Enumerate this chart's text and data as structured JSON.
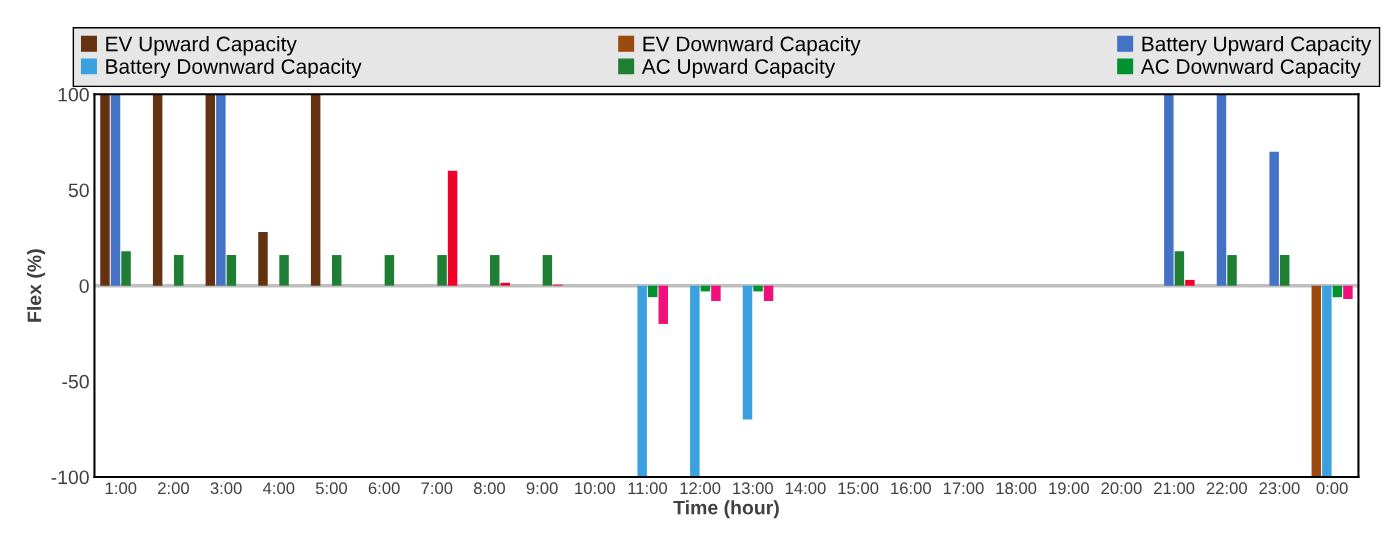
{
  "chart_data": {
    "type": "bar",
    "xlabel": "Time (hour)",
    "ylabel": "Flex (%)",
    "categories": [
      "1:00",
      "2:00",
      "3:00",
      "4:00",
      "5:00",
      "6:00",
      "7:00",
      "8:00",
      "9:00",
      "10:00",
      "11:00",
      "12:00",
      "13:00",
      "14:00",
      "15:00",
      "16:00",
      "17:00",
      "18:00",
      "19:00",
      "20:00",
      "21:00",
      "22:00",
      "23:00",
      "0:00"
    ],
    "series": [
      {
        "name": "EV Upward Capacity",
        "color": "#633210",
        "values": [
          100,
          100,
          100,
          28,
          100,
          null,
          null,
          null,
          null,
          null,
          null,
          null,
          null,
          null,
          null,
          null,
          null,
          null,
          null,
          null,
          null,
          null,
          null,
          null
        ]
      },
      {
        "name": "EV Downward Capacity",
        "color": "#9a4a0f",
        "values": [
          null,
          null,
          null,
          null,
          null,
          null,
          null,
          null,
          null,
          null,
          null,
          null,
          null,
          null,
          null,
          null,
          null,
          null,
          null,
          null,
          null,
          null,
          null,
          -100
        ]
      },
      {
        "name": "Battery Upward Capacity",
        "color": "#4472c4",
        "values": [
          100,
          null,
          100,
          null,
          null,
          null,
          null,
          null,
          null,
          null,
          null,
          null,
          null,
          null,
          null,
          null,
          null,
          null,
          null,
          null,
          100,
          100,
          70,
          null
        ]
      },
      {
        "name": "Battery Downward Capacity",
        "color": "#3aa0de",
        "values": [
          null,
          null,
          null,
          null,
          null,
          null,
          null,
          null,
          null,
          null,
          -100,
          -100,
          -70,
          null,
          null,
          null,
          null,
          null,
          null,
          null,
          null,
          null,
          null,
          -100
        ]
      },
      {
        "name": "AC Upward Capacity",
        "color": "#1e7e34",
        "values": [
          18,
          16,
          16,
          16,
          16,
          16,
          16,
          16,
          16,
          null,
          null,
          null,
          null,
          null,
          null,
          null,
          null,
          null,
          null,
          null,
          18,
          16,
          16,
          null
        ]
      },
      {
        "name": "AC Downward Capacity",
        "color": "#00922e",
        "values": [
          null,
          null,
          null,
          null,
          null,
          null,
          null,
          null,
          null,
          null,
          -6,
          -3,
          -3,
          null,
          null,
          null,
          null,
          null,
          null,
          null,
          null,
          null,
          null,
          -6
        ]
      },
      {
        "color": "#f0002a",
        "values": [
          null,
          null,
          null,
          null,
          null,
          null,
          60,
          1.5,
          0.5,
          null,
          null,
          null,
          null,
          null,
          null,
          null,
          null,
          null,
          null,
          null,
          3,
          null,
          null,
          null
        ]
      },
      {
        "color": "#f0107a",
        "values": [
          null,
          null,
          null,
          null,
          null,
          null,
          null,
          null,
          null,
          null,
          -20,
          -8,
          -8,
          null,
          null,
          null,
          null,
          null,
          null,
          null,
          null,
          null,
          null,
          -7
        ]
      }
    ],
    "ref_lines": [
      {
        "axis": "y",
        "value": 0,
        "color": "#bfbfbf"
      }
    ],
    "ylim": [
      -100,
      100
    ],
    "yticks": [
      -100,
      -50,
      0,
      50,
      100
    ],
    "grid": false,
    "legend": "top"
  }
}
